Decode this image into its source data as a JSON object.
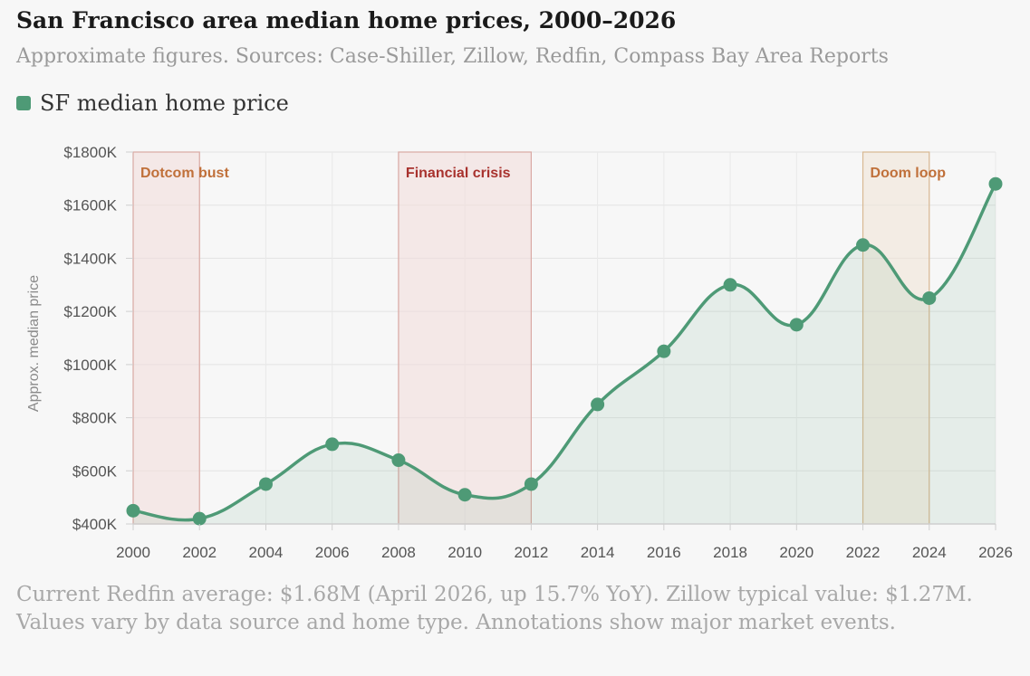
{
  "title": "San Francisco area median home prices, 2000–2026",
  "subtitle": "Approximate figures. Sources: Case-Shiller, Zillow, Redfin, Compass Bay Area Reports",
  "legend": {
    "label": "SF median home price",
    "color": "#4e9a76"
  },
  "footnote": "Current Redfin average: $1.68M (April 2026, up 15.7% YoY). Zillow typical value: $1.27M. Values vary by data source and home type. Annotations show major market events.",
  "chart_data": {
    "type": "line",
    "xlabel": "",
    "ylabel": "Approx. median price",
    "x": [
      2000,
      2002,
      2004,
      2006,
      2008,
      2010,
      2012,
      2014,
      2016,
      2018,
      2020,
      2022,
      2024,
      2026
    ],
    "series": [
      {
        "name": "SF median home price",
        "color": "#4e9a76",
        "values": [
          450,
          420,
          550,
          700,
          640,
          510,
          550,
          850,
          1050,
          1300,
          1150,
          1450,
          1250,
          1680
        ]
      }
    ],
    "ylim": [
      400,
      1800
    ],
    "yticks": [
      400,
      600,
      800,
      1000,
      1200,
      1400,
      1600,
      1800
    ],
    "ytick_labels": [
      "$400K",
      "$600K",
      "$800K",
      "$1000K",
      "$1200K",
      "$1400K",
      "$1600K",
      "$1800K"
    ],
    "xticks": [
      "2000",
      "2002",
      "2004",
      "2006",
      "2008",
      "2010",
      "2012",
      "2014",
      "2016",
      "2018",
      "2020",
      "2022",
      "2024",
      "2026"
    ],
    "grid": true,
    "area_fill": true,
    "annotations": [
      {
        "label": "Dotcom bust",
        "x_start": 2000,
        "x_end": 2002,
        "fill": "#f3dcdb",
        "stroke": "#d9a9a4",
        "text_color": "#c0703a"
      },
      {
        "label": "Financial crisis",
        "x_start": 2008,
        "x_end": 2012,
        "fill": "#f3dcdb",
        "stroke": "#d9a9a4",
        "text_color": "#a8322e"
      },
      {
        "label": "Doom loop",
        "x_start": 2022,
        "x_end": 2024,
        "fill": "#f1e4d6",
        "stroke": "#d8b892",
        "text_color": "#c0703a"
      }
    ]
  }
}
